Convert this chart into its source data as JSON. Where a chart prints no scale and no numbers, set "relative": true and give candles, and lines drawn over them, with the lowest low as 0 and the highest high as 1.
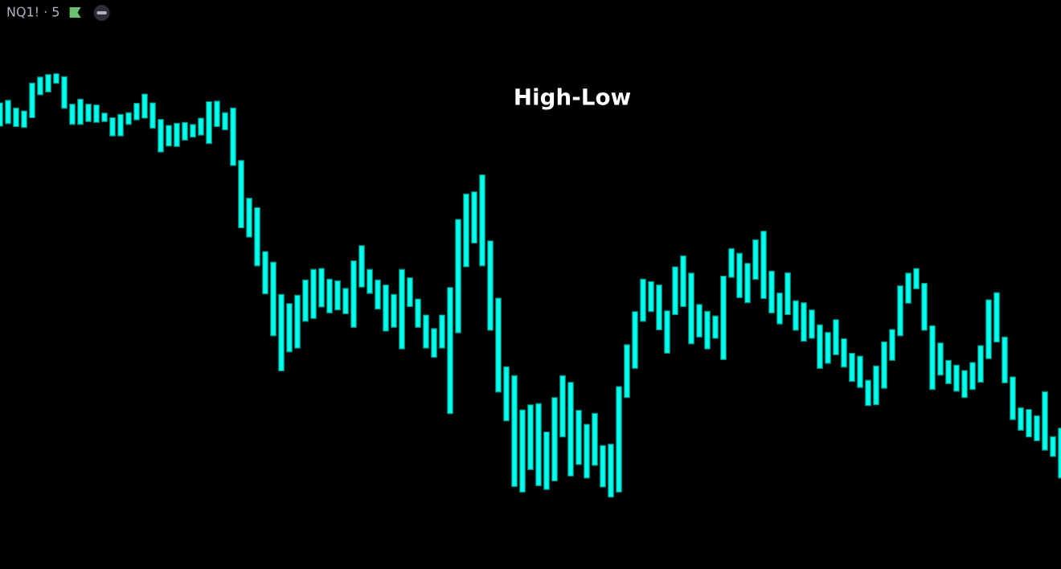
{
  "chart_data": {
    "type": "candlestick",
    "title": "High-Low",
    "subtitle": "NQ1! · 5",
    "relative": true,
    "color": "#00ffea",
    "categories": [
      null,
      null,
      null,
      null,
      null,
      null,
      null,
      null,
      null,
      null,
      null,
      null,
      null,
      null,
      null,
      null,
      null,
      null,
      null,
      null,
      null,
      null,
      null,
      null,
      null,
      null,
      null,
      null,
      null,
      null,
      null,
      null,
      null,
      null,
      null,
      null,
      null,
      null,
      null,
      null,
      null,
      null,
      null,
      null,
      null,
      null,
      null,
      null,
      null,
      null,
      null,
      null,
      null,
      null,
      null,
      null,
      null,
      null,
      null,
      null,
      null,
      null,
      null,
      null,
      null,
      null,
      null,
      null,
      null,
      null,
      null,
      null,
      null,
      null,
      null,
      null,
      null,
      null,
      null,
      null,
      null,
      null,
      null,
      null,
      null,
      null,
      null,
      null,
      null,
      null,
      null,
      null,
      null,
      null,
      null,
      null,
      null,
      null,
      null,
      null,
      null,
      null,
      null,
      null,
      null,
      null,
      null,
      null,
      null,
      null,
      null,
      null,
      null,
      null,
      null,
      null,
      null,
      null,
      null,
      null,
      null,
      null,
      null,
      null,
      null,
      null,
      null,
      null,
      null,
      null,
      null,
      null,
      null
    ],
    "ohlc": [
      [
        0.876,
        0.931,
        0.876,
        0.931
      ],
      [
        0.882,
        0.937,
        0.882,
        0.937
      ],
      [
        0.875,
        0.919,
        0.875,
        0.919
      ],
      [
        0.873,
        0.912,
        0.873,
        0.912
      ],
      [
        0.896,
        0.978,
        0.896,
        0.978
      ],
      [
        0.95,
        0.992,
        0.95,
        0.992
      ],
      [
        0.957,
        0.998,
        0.957,
        0.998
      ],
      [
        0.977,
        1.0,
        0.977,
        1.0
      ],
      [
        0.918,
        0.993,
        0.918,
        0.993
      ],
      [
        0.88,
        0.928,
        0.88,
        0.928
      ],
      [
        0.88,
        0.94,
        0.88,
        0.94
      ],
      [
        0.887,
        0.928,
        0.887,
        0.928
      ],
      [
        0.885,
        0.926,
        0.885,
        0.926
      ],
      [
        0.887,
        0.907,
        0.887,
        0.907
      ],
      [
        0.853,
        0.896,
        0.853,
        0.896
      ],
      [
        0.853,
        0.904,
        0.853,
        0.904
      ],
      [
        0.88,
        0.908,
        0.88,
        0.908
      ],
      [
        0.891,
        0.93,
        0.891,
        0.93
      ],
      [
        0.895,
        0.952,
        0.895,
        0.952
      ],
      [
        0.871,
        0.931,
        0.871,
        0.931
      ],
      [
        0.815,
        0.892,
        0.815,
        0.892
      ],
      [
        0.829,
        0.878,
        0.829,
        0.878
      ],
      [
        0.828,
        0.883,
        0.828,
        0.883
      ],
      [
        0.843,
        0.885,
        0.843,
        0.885
      ],
      [
        0.85,
        0.88,
        0.85,
        0.88
      ],
      [
        0.855,
        0.895,
        0.855,
        0.895
      ],
      [
        0.835,
        0.934,
        0.835,
        0.934
      ],
      [
        0.875,
        0.935,
        0.875,
        0.935
      ],
      [
        0.867,
        0.908,
        0.867,
        0.908
      ],
      [
        0.783,
        0.919,
        0.783,
        0.919
      ],
      [
        0.636,
        0.795,
        0.636,
        0.795
      ],
      [
        0.614,
        0.706,
        0.614,
        0.706
      ],
      [
        0.546,
        0.684,
        0.546,
        0.684
      ],
      [
        0.48,
        0.58,
        0.48,
        0.58
      ],
      [
        0.381,
        0.555,
        0.381,
        0.555
      ],
      [
        0.298,
        0.479,
        0.298,
        0.479
      ],
      [
        0.343,
        0.457,
        0.343,
        0.457
      ],
      [
        0.352,
        0.477,
        0.352,
        0.477
      ],
      [
        0.415,
        0.513,
        0.415,
        0.513
      ],
      [
        0.422,
        0.538,
        0.422,
        0.538
      ],
      [
        0.449,
        0.54,
        0.449,
        0.54
      ],
      [
        0.435,
        0.515,
        0.435,
        0.515
      ],
      [
        0.442,
        0.511,
        0.442,
        0.511
      ],
      [
        0.433,
        0.493,
        0.433,
        0.493
      ],
      [
        0.401,
        0.558,
        0.401,
        0.558
      ],
      [
        0.496,
        0.594,
        0.496,
        0.594
      ],
      [
        0.481,
        0.538,
        0.481,
        0.538
      ],
      [
        0.444,
        0.513,
        0.444,
        0.513
      ],
      [
        0.392,
        0.501,
        0.392,
        0.501
      ],
      [
        0.401,
        0.479,
        0.401,
        0.479
      ],
      [
        0.35,
        0.538,
        0.35,
        0.538
      ],
      [
        0.45,
        0.518,
        0.45,
        0.518
      ],
      [
        0.401,
        0.468,
        0.401,
        0.468
      ],
      [
        0.352,
        0.43,
        0.352,
        0.43
      ],
      [
        0.33,
        0.398,
        0.33,
        0.398
      ],
      [
        0.352,
        0.43,
        0.352,
        0.43
      ],
      [
        0.197,
        0.495,
        0.197,
        0.495
      ],
      [
        0.388,
        0.656,
        0.388,
        0.656
      ],
      [
        0.544,
        0.716,
        0.544,
        0.716
      ],
      [
        0.6,
        0.721,
        0.6,
        0.721
      ],
      [
        0.546,
        0.761,
        0.546,
        0.761
      ],
      [
        0.394,
        0.605,
        0.394,
        0.605
      ],
      [
        0.248,
        0.47,
        0.248,
        0.47
      ],
      [
        0.18,
        0.308,
        0.18,
        0.308
      ],
      [
        0.025,
        0.287,
        0.025,
        0.287
      ],
      [
        0.012,
        0.206,
        0.012,
        0.206
      ],
      [
        0.065,
        0.218,
        0.065,
        0.218
      ],
      [
        0.027,
        0.221,
        0.027,
        0.221
      ],
      [
        0.018,
        0.154,
        0.018,
        0.154
      ],
      [
        0.038,
        0.235,
        0.038,
        0.235
      ],
      [
        0.142,
        0.287,
        0.142,
        0.287
      ],
      [
        0.05,
        0.271,
        0.05,
        0.271
      ],
      [
        0.077,
        0.205,
        0.077,
        0.205
      ],
      [
        0.045,
        0.172,
        0.045,
        0.172
      ],
      [
        0.075,
        0.198,
        0.075,
        0.198
      ],
      [
        0.024,
        0.122,
        0.024,
        0.122
      ],
      [
        0,
        0.125,
        0,
        0.125
      ],
      [
        0.012,
        0.261,
        0.012,
        0.261
      ],
      [
        0.235,
        0.36,
        0.235,
        0.36
      ],
      [
        0.304,
        0.438,
        0.304,
        0.438
      ],
      [
        0.415,
        0.515,
        0.415,
        0.515
      ],
      [
        0.438,
        0.509,
        0.438,
        0.509
      ],
      [
        0.395,
        0.501,
        0.395,
        0.501
      ],
      [
        0.34,
        0.44,
        0.34,
        0.44
      ],
      [
        0.431,
        0.544,
        0.431,
        0.544
      ],
      [
        0.45,
        0.57,
        0.45,
        0.57
      ],
      [
        0.362,
        0.529,
        0.362,
        0.529
      ],
      [
        0.378,
        0.455,
        0.378,
        0.455
      ],
      [
        0.35,
        0.439,
        0.35,
        0.439
      ],
      [
        0.375,
        0.428,
        0.375,
        0.428
      ],
      [
        0.325,
        0.522,
        0.325,
        0.522
      ],
      [
        0.519,
        0.587,
        0.519,
        0.587
      ],
      [
        0.471,
        0.576,
        0.471,
        0.576
      ],
      [
        0.459,
        0.552,
        0.459,
        0.552
      ],
      [
        0.514,
        0.608,
        0.514,
        0.608
      ],
      [
        0.469,
        0.628,
        0.469,
        0.628
      ],
      [
        0.435,
        0.534,
        0.435,
        0.534
      ],
      [
        0.409,
        0.482,
        0.409,
        0.482
      ],
      [
        0.431,
        0.53,
        0.431,
        0.53
      ],
      [
        0.394,
        0.464,
        0.394,
        0.464
      ],
      [
        0.368,
        0.459,
        0.368,
        0.459
      ],
      [
        0.375,
        0.442,
        0.375,
        0.442
      ],
      [
        0.304,
        0.407,
        0.304,
        0.407
      ],
      [
        0.316,
        0.389,
        0.316,
        0.389
      ],
      [
        0.336,
        0.419,
        0.336,
        0.419
      ],
      [
        0.307,
        0.374,
        0.307,
        0.374
      ],
      [
        0.273,
        0.34,
        0.273,
        0.34
      ],
      [
        0.259,
        0.333,
        0.259,
        0.333
      ],
      [
        0.216,
        0.276,
        0.216,
        0.276
      ],
      [
        0.218,
        0.31,
        0.218,
        0.31
      ],
      [
        0.257,
        0.367,
        0.257,
        0.367
      ],
      [
        0.323,
        0.396,
        0.323,
        0.396
      ],
      [
        0.381,
        0.499,
        0.381,
        0.499
      ],
      [
        0.458,
        0.529,
        0.458,
        0.529
      ],
      [
        0.492,
        0.54,
        0.492,
        0.54
      ],
      [
        0.394,
        0.505,
        0.394,
        0.505
      ],
      [
        0.254,
        0.405,
        0.254,
        0.405
      ],
      [
        0.288,
        0.364,
        0.288,
        0.364
      ],
      [
        0.268,
        0.323,
        0.268,
        0.323
      ],
      [
        0.25,
        0.312,
        0.25,
        0.312
      ],
      [
        0.235,
        0.299,
        0.235,
        0.299
      ],
      [
        0.254,
        0.318,
        0.254,
        0.318
      ],
      [
        0.271,
        0.358,
        0.271,
        0.358
      ],
      [
        0.327,
        0.466,
        0.327,
        0.466
      ],
      [
        0.366,
        0.483,
        0.366,
        0.483
      ],
      [
        0.27,
        0.378,
        0.27,
        0.378
      ],
      [
        0.183,
        0.284,
        0.183,
        0.284
      ],
      [
        0.158,
        0.211,
        0.158,
        0.211
      ],
      [
        0.142,
        0.207,
        0.142,
        0.207
      ],
      [
        0.133,
        0.192,
        0.133,
        0.192
      ],
      [
        0.111,
        0.249,
        0.111,
        0.249
      ],
      [
        0.096,
        0.143,
        0.096,
        0.143
      ],
      [
        0.045,
        0.163,
        0.045,
        0.163
      ]
    ]
  }
}
